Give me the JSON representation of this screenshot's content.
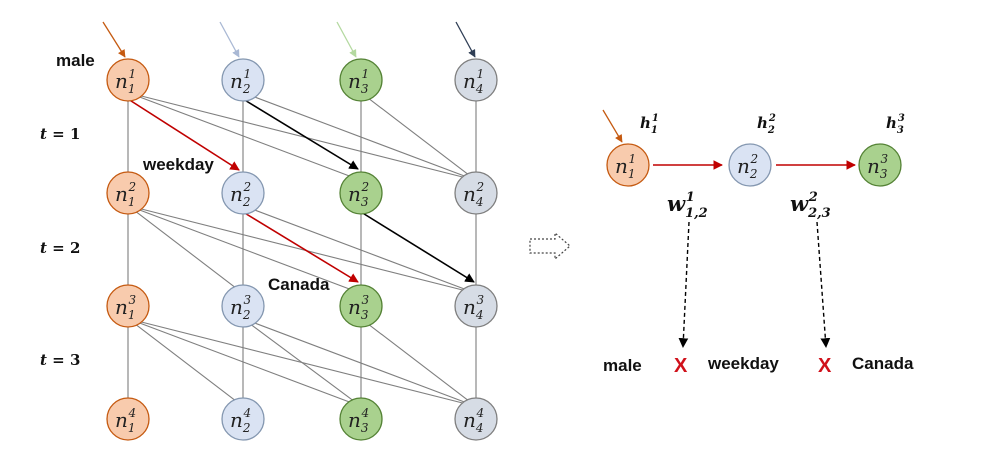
{
  "colors": {
    "orange_fill": "#f8cbad",
    "orange_stroke": "#c55a11",
    "blue_fill": "#dae3f3",
    "blue_stroke": "#8497b0",
    "green_fill": "#a9d18e",
    "green_stroke": "#548235",
    "gray_fill": "#d6dce5",
    "gray_stroke": "#7f7f7f",
    "red_edge": "#c00000",
    "black_edge": "#000000",
    "gray_edge": "#7f7f7f",
    "x_mark": "#d0111b"
  },
  "left_graph": {
    "node_symbol": "n",
    "time_labels": [
      {
        "t": "t",
        "eq": " = 1"
      },
      {
        "t": "t",
        "eq": " = 2"
      },
      {
        "t": "t",
        "eq": " = 3"
      }
    ],
    "annotations": {
      "male": "male",
      "weekday": "weekday",
      "canada": "Canada"
    },
    "layers": [
      [
        "1",
        "1",
        "1",
        "1"
      ],
      [
        "2",
        "2",
        "2",
        "2"
      ],
      [
        "3",
        "3",
        "3",
        "3"
      ],
      [
        "4",
        "4",
        "4",
        "4"
      ]
    ],
    "columns": [
      "1",
      "2",
      "3",
      "4"
    ]
  },
  "right_graph": {
    "nodes": [
      {
        "sym": "n",
        "sub": "1",
        "sup": "1",
        "h": "h",
        "h_sub": "1",
        "h_sup": "1"
      },
      {
        "sym": "n",
        "sub": "2",
        "sup": "2",
        "h": "h",
        "h_sub": "2",
        "h_sup": "2"
      },
      {
        "sym": "n",
        "sub": "3",
        "sup": "3",
        "h": "h",
        "h_sub": "3",
        "h_sup": "3"
      }
    ],
    "weights": [
      {
        "w": "w",
        "sub": "1,2",
        "sup": "1"
      },
      {
        "w": "w",
        "sub": "2,3",
        "sup": "2"
      }
    ],
    "bottom_terms": {
      "male": "male",
      "x1": "X",
      "weekday": "weekday",
      "x2": "X",
      "canada": "Canada"
    }
  }
}
